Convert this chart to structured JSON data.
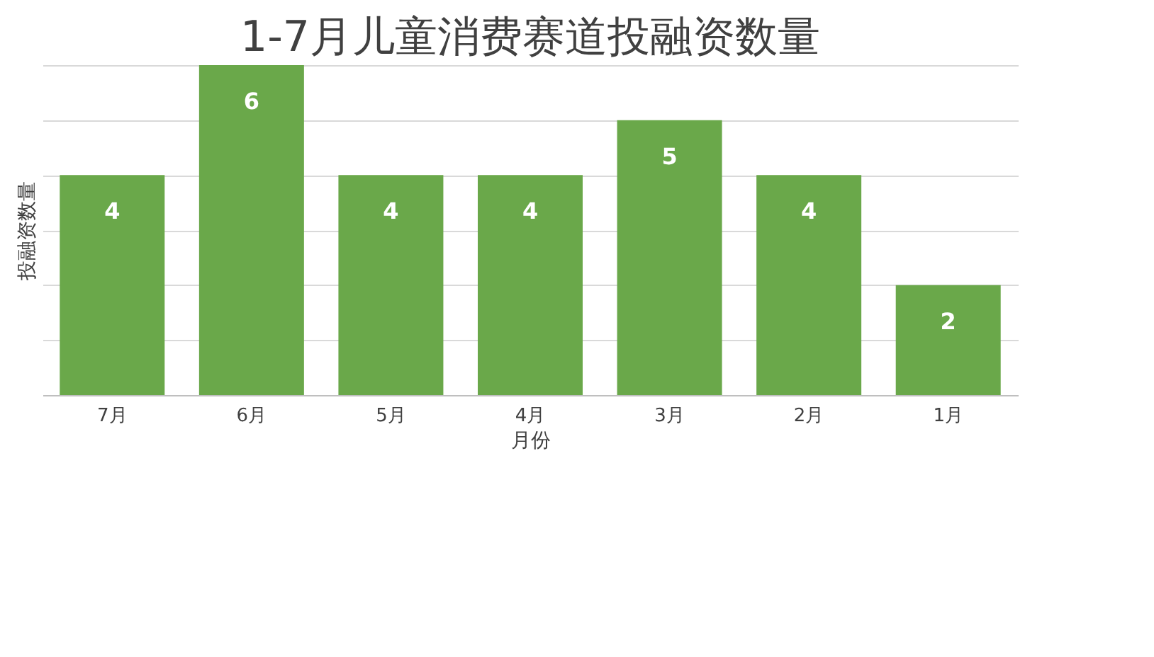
{
  "chart_data": {
    "type": "bar",
    "title": "1-7月儿童消费赛道投融资数量",
    "xlabel": "月份",
    "ylabel": "投融资数量",
    "categories": [
      "7月",
      "6月",
      "5月",
      "4月",
      "3月",
      "2月",
      "1月"
    ],
    "values": [
      4,
      6,
      4,
      4,
      5,
      4,
      2
    ],
    "color": "#6aa84a",
    "grid": "y",
    "tick_labels": "x",
    "data_labels": true
  }
}
